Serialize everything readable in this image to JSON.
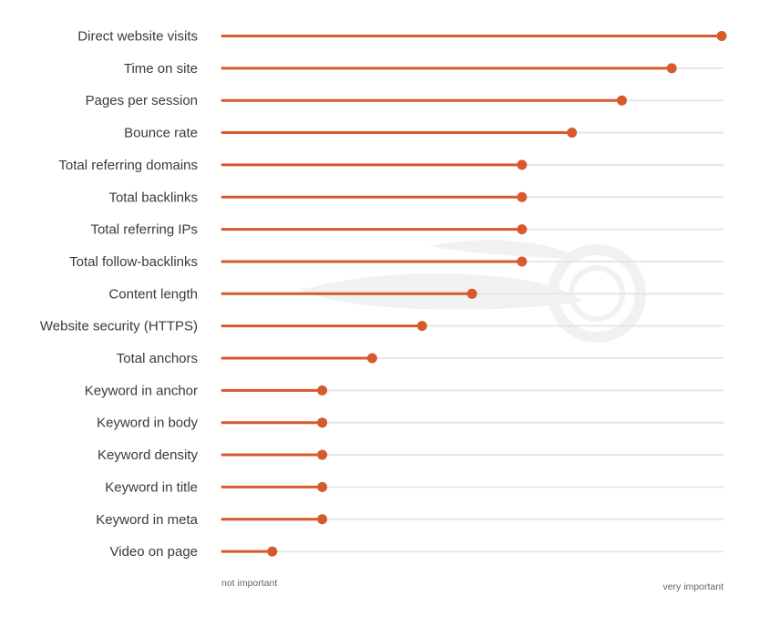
{
  "colors": {
    "accent": "#d65a2e",
    "track": "#e6e6e6",
    "watermark": "#f1f1f1",
    "text": "#3a3a3a",
    "axis_text": "#666666"
  },
  "chart_data": {
    "type": "lollipop",
    "title": "",
    "xlabel": "",
    "ylabel": "",
    "xlim": [
      0,
      100
    ],
    "axis_labels": {
      "min": "not important",
      "max": "very important"
    },
    "categories": [
      "Direct website visits",
      "Time on site",
      "Pages per session",
      "Bounce rate",
      "Total referring domains",
      "Total backlinks",
      "Total referring IPs",
      "Total follow-backlinks",
      "Content length",
      "Website security (HTTPS)",
      "Total anchors",
      "Keyword in anchor",
      "Keyword in body",
      "Keyword density",
      "Keyword in title",
      "Keyword in meta",
      "Video on page"
    ],
    "values": [
      100,
      90,
      80,
      70,
      60,
      60,
      60,
      60,
      50,
      40,
      30,
      20,
      20,
      20,
      20,
      20,
      10
    ],
    "grid": false,
    "legend": "none"
  }
}
